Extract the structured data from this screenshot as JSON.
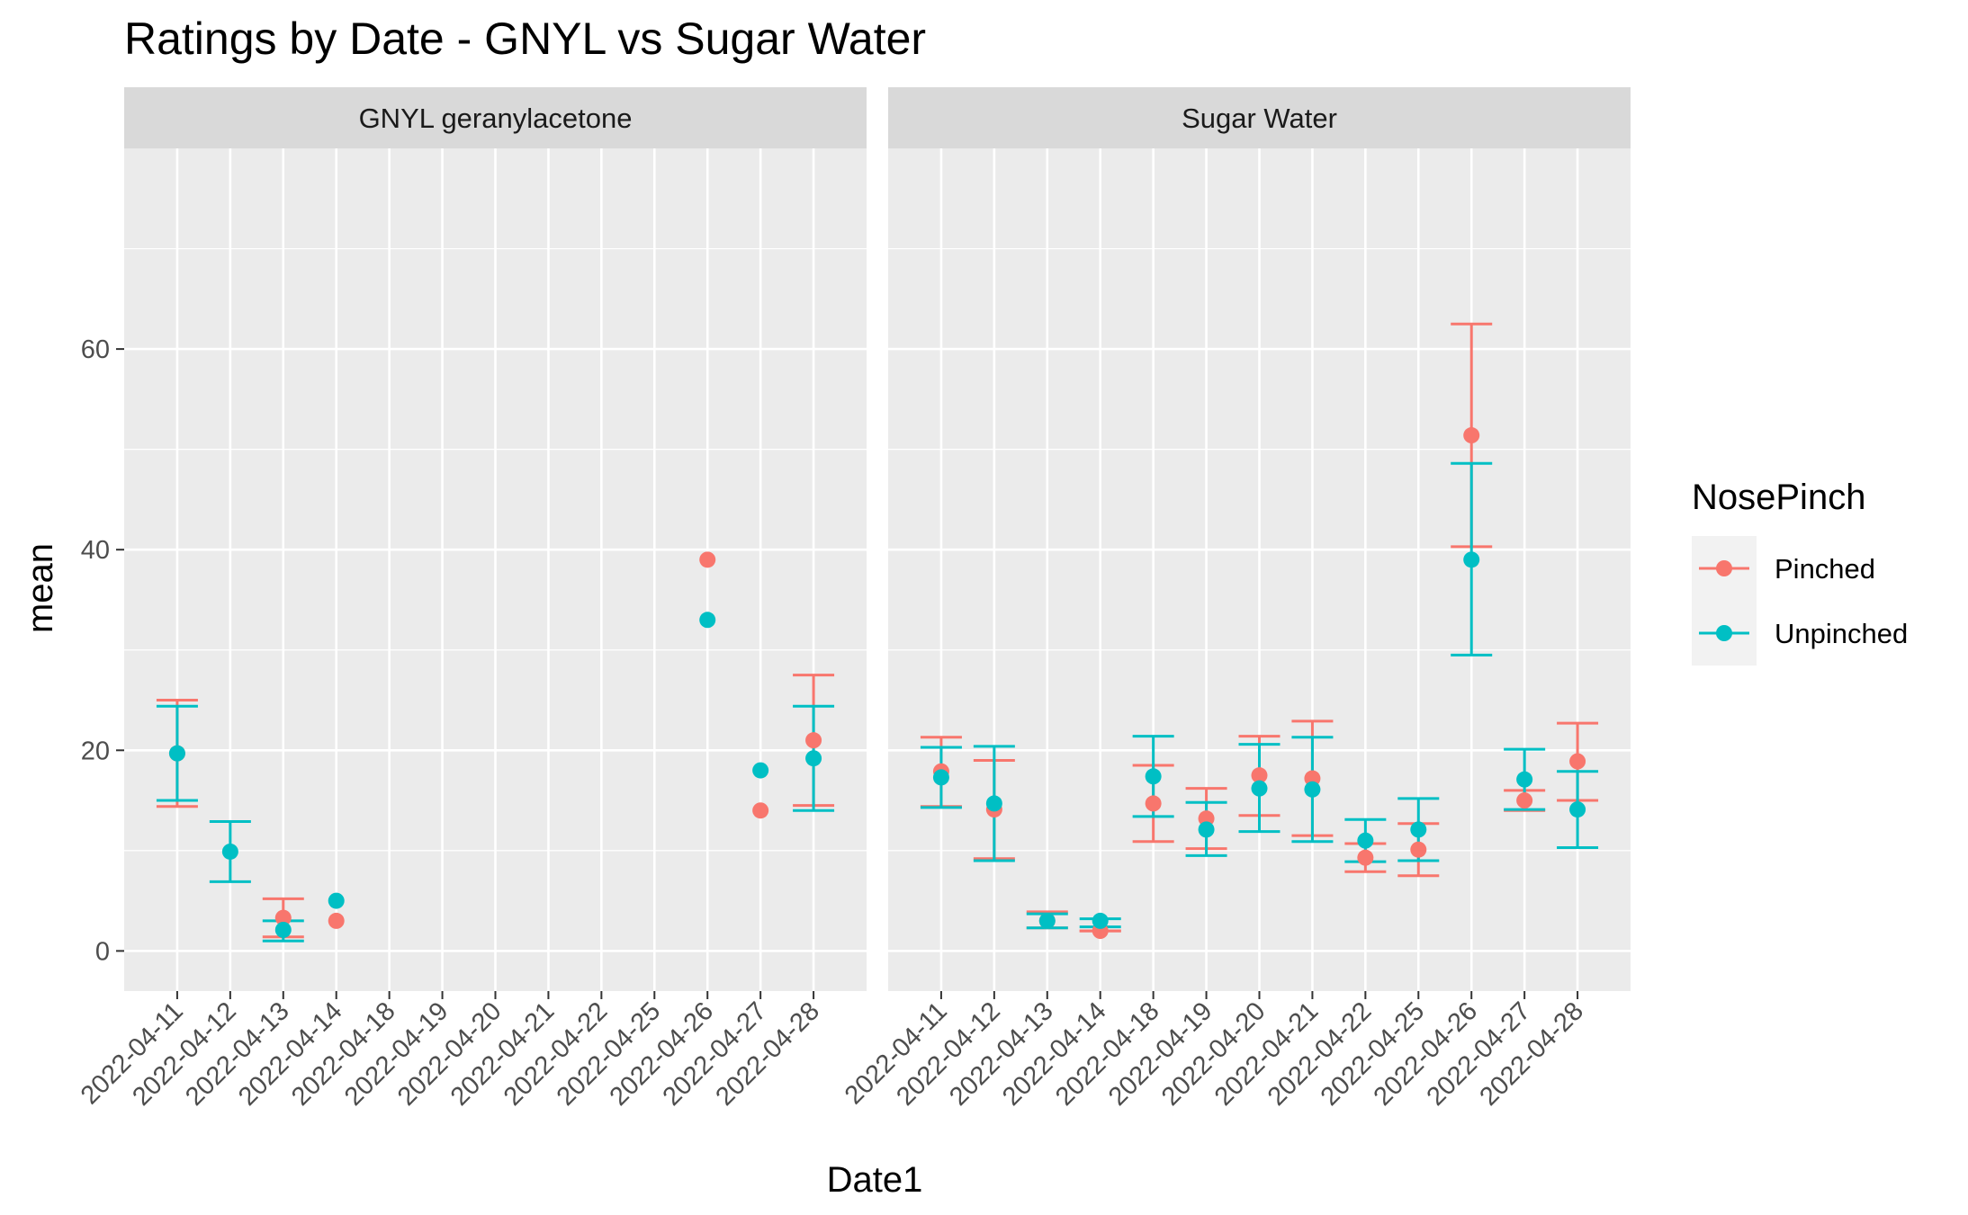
{
  "chart_data": {
    "type": "scatter",
    "title": "Ratings by Date - GNYL vs Sugar Water",
    "xlabel": "Date1",
    "ylabel": "mean",
    "ylim": [
      -4,
      80
    ],
    "y_ticks": [
      0,
      20,
      40,
      60
    ],
    "grid": true,
    "legend": {
      "title": "NosePinch",
      "position": "right"
    },
    "categories": [
      "2022-04-11",
      "2022-04-12",
      "2022-04-13",
      "2022-04-14",
      "2022-04-18",
      "2022-04-19",
      "2022-04-20",
      "2022-04-21",
      "2022-04-22",
      "2022-04-25",
      "2022-04-26",
      "2022-04-27",
      "2022-04-28"
    ],
    "series": [
      {
        "name": "Pinched",
        "color": "#F8766D"
      },
      {
        "name": "Unpinched",
        "color": "#00BFC4"
      }
    ],
    "panels": [
      {
        "label": "GNYL geranylacetone",
        "data": {
          "Pinched": [
            {
              "x": "2022-04-11",
              "y": 19.7,
              "ymin": 14.4,
              "ymax": 25.0
            },
            {
              "x": "2022-04-13",
              "y": 3.3,
              "ymin": 1.4,
              "ymax": 5.2
            },
            {
              "x": "2022-04-14",
              "y": 3.0
            },
            {
              "x": "2022-04-26",
              "y": 39.0
            },
            {
              "x": "2022-04-27",
              "y": 14.0
            },
            {
              "x": "2022-04-28",
              "y": 21.0,
              "ymin": 14.5,
              "ymax": 27.5
            }
          ],
          "Unpinched": [
            {
              "x": "2022-04-11",
              "y": 19.7,
              "ymin": 15.0,
              "ymax": 24.4
            },
            {
              "x": "2022-04-12",
              "y": 9.9,
              "ymin": 6.9,
              "ymax": 12.9
            },
            {
              "x": "2022-04-13",
              "y": 2.1,
              "ymin": 1.0,
              "ymax": 3.0
            },
            {
              "x": "2022-04-14",
              "y": 5.0
            },
            {
              "x": "2022-04-26",
              "y": 33.0
            },
            {
              "x": "2022-04-27",
              "y": 18.0
            },
            {
              "x": "2022-04-28",
              "y": 19.2,
              "ymin": 14.0,
              "ymax": 24.4
            }
          ]
        }
      },
      {
        "label": "Sugar Water",
        "data": {
          "Pinched": [
            {
              "x": "2022-04-11",
              "y": 17.9,
              "ymin": 14.4,
              "ymax": 21.3
            },
            {
              "x": "2022-04-12",
              "y": 14.1,
              "ymin": 9.2,
              "ymax": 19.0
            },
            {
              "x": "2022-04-13",
              "y": 3.0,
              "ymin": 2.3,
              "ymax": 3.9
            },
            {
              "x": "2022-04-14",
              "y": 2.0,
              "ymin": 2.0,
              "ymax": 2.0
            },
            {
              "x": "2022-04-18",
              "y": 14.7,
              "ymin": 10.9,
              "ymax": 18.5
            },
            {
              "x": "2022-04-19",
              "y": 13.2,
              "ymin": 10.2,
              "ymax": 16.2
            },
            {
              "x": "2022-04-20",
              "y": 17.5,
              "ymin": 13.5,
              "ymax": 21.4
            },
            {
              "x": "2022-04-21",
              "y": 17.2,
              "ymin": 11.5,
              "ymax": 22.9
            },
            {
              "x": "2022-04-22",
              "y": 9.3,
              "ymin": 7.9,
              "ymax": 10.7
            },
            {
              "x": "2022-04-25",
              "y": 10.1,
              "ymin": 7.5,
              "ymax": 12.7
            },
            {
              "x": "2022-04-26",
              "y": 51.4,
              "ymin": 40.3,
              "ymax": 62.5
            },
            {
              "x": "2022-04-27",
              "y": 15.0,
              "ymin": 14.0,
              "ymax": 16.0
            },
            {
              "x": "2022-04-28",
              "y": 18.9,
              "ymin": 15.0,
              "ymax": 22.7
            }
          ],
          "Unpinched": [
            {
              "x": "2022-04-11",
              "y": 17.3,
              "ymin": 14.3,
              "ymax": 20.3
            },
            {
              "x": "2022-04-12",
              "y": 14.7,
              "ymin": 9.0,
              "ymax": 20.4
            },
            {
              "x": "2022-04-13",
              "y": 3.0,
              "ymin": 2.3,
              "ymax": 3.7
            },
            {
              "x": "2022-04-14",
              "y": 3.0,
              "ymin": 2.4,
              "ymax": 3.2
            },
            {
              "x": "2022-04-18",
              "y": 17.4,
              "ymin": 13.4,
              "ymax": 21.4
            },
            {
              "x": "2022-04-19",
              "y": 12.1,
              "ymin": 9.5,
              "ymax": 14.8
            },
            {
              "x": "2022-04-20",
              "y": 16.2,
              "ymin": 11.9,
              "ymax": 20.6
            },
            {
              "x": "2022-04-21",
              "y": 16.1,
              "ymin": 10.9,
              "ymax": 21.3
            },
            {
              "x": "2022-04-22",
              "y": 11.0,
              "ymin": 8.9,
              "ymax": 13.1
            },
            {
              "x": "2022-04-25",
              "y": 12.1,
              "ymin": 9.0,
              "ymax": 15.2
            },
            {
              "x": "2022-04-26",
              "y": 39.0,
              "ymin": 29.5,
              "ymax": 48.6
            },
            {
              "x": "2022-04-27",
              "y": 17.1,
              "ymin": 14.1,
              "ymax": 20.1
            },
            {
              "x": "2022-04-28",
              "y": 14.1,
              "ymin": 10.3,
              "ymax": 17.9
            }
          ]
        }
      }
    ]
  }
}
